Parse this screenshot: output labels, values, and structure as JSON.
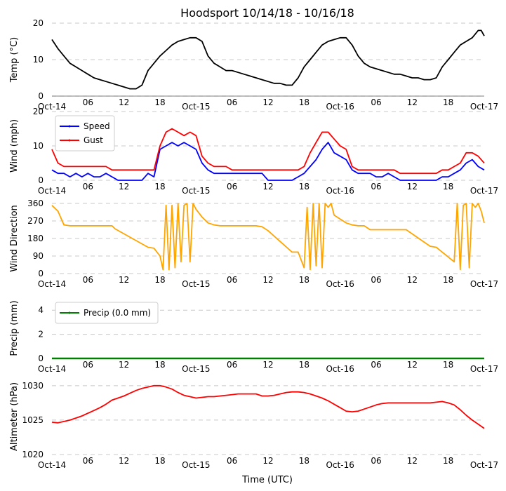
{
  "chart_data": {
    "title": "Hoodsport 10/14/18 - 10/16/18",
    "xlabel": "Time (UTC)",
    "x_range_hours": [
      0,
      72
    ],
    "x_ticks": [
      {
        "h": 0,
        "label": "Oct-14"
      },
      {
        "h": 6,
        "label": "06"
      },
      {
        "h": 12,
        "label": "12"
      },
      {
        "h": 18,
        "label": "18"
      },
      {
        "h": 24,
        "label": "Oct-15"
      },
      {
        "h": 30,
        "label": "06"
      },
      {
        "h": 36,
        "label": "12"
      },
      {
        "h": 42,
        "label": "18"
      },
      {
        "h": 48,
        "label": "Oct-16"
      },
      {
        "h": 54,
        "label": "06"
      },
      {
        "h": 60,
        "label": "12"
      },
      {
        "h": 66,
        "label": "18"
      },
      {
        "h": 72,
        "label": "Oct-17"
      }
    ],
    "panels": [
      {
        "id": "temp",
        "type": "line",
        "ylabel": "Temp (°C)",
        "ylim": [
          0,
          20
        ],
        "yticks": [
          0,
          10,
          20
        ],
        "grid": true,
        "legend": null,
        "series": [
          {
            "name": "Temp",
            "color": "#000000",
            "x": [
              0,
              1,
              2,
              3,
              4,
              5,
              6,
              7,
              8,
              9,
              10,
              11,
              12,
              13,
              14,
              15,
              16,
              17,
              18,
              19,
              20,
              21,
              22,
              23,
              24,
              25,
              26,
              27,
              28,
              29,
              30,
              31,
              32,
              33,
              34,
              35,
              36,
              37,
              38,
              39,
              40,
              41,
              42,
              43,
              44,
              45,
              46,
              47,
              48,
              49,
              50,
              51,
              52,
              53,
              54,
              55,
              56,
              57,
              58,
              59,
              60,
              61,
              62,
              63,
              64,
              65,
              66,
              67,
              68,
              69,
              70,
              71,
              71.5,
              72
            ],
            "y": [
              15.5,
              13,
              11,
              9,
              8,
              7,
              6,
              5,
              4.5,
              4,
              3.5,
              3,
              2.5,
              2,
              2,
              3,
              7,
              9,
              11,
              12.5,
              14,
              15,
              15.5,
              16,
              16,
              15,
              11,
              9,
              8,
              7,
              7,
              6.5,
              6,
              5.5,
              5,
              4.5,
              4,
              3.5,
              3.5,
              3,
              3,
              5,
              8,
              10,
              12,
              14,
              15,
              15.5,
              16,
              16,
              14,
              11,
              9,
              8,
              7.5,
              7,
              6.5,
              6,
              6,
              5.5,
              5,
              5,
              4.5,
              4.5,
              5,
              8,
              10,
              12,
              14,
              15,
              16,
              18,
              18,
              16.5
            ]
          }
        ]
      },
      {
        "id": "wind",
        "type": "line",
        "ylabel": "Wind (mph)",
        "ylim": [
          0,
          20
        ],
        "yticks": [
          0,
          10,
          20
        ],
        "grid": true,
        "legend": {
          "placement": "top-left",
          "entries": [
            "Speed",
            "Gust"
          ]
        },
        "series": [
          {
            "name": "Speed",
            "color": "#0000ff",
            "x": [
              0,
              1,
              2,
              3,
              4,
              5,
              6,
              7,
              8,
              9,
              10,
              11,
              12,
              13,
              14,
              15,
              16,
              17,
              18,
              19,
              20,
              21,
              22,
              23,
              24,
              25,
              26,
              27,
              28,
              29,
              30,
              31,
              32,
              33,
              34,
              35,
              36,
              37,
              38,
              39,
              40,
              41,
              42,
              43,
              44,
              45,
              46,
              47,
              48,
              49,
              50,
              51,
              52,
              53,
              54,
              55,
              56,
              57,
              58,
              59,
              60,
              61,
              62,
              63,
              64,
              65,
              66,
              67,
              68,
              69,
              70,
              71,
              72
            ],
            "y": [
              3,
              2,
              2,
              1,
              2,
              1,
              2,
              1,
              1,
              2,
              1,
              0,
              0,
              0,
              0,
              0,
              2,
              1,
              9,
              10,
              11,
              10,
              11,
              10,
              9,
              5,
              3,
              2,
              2,
              2,
              2,
              2,
              2,
              2,
              2,
              2,
              0,
              0,
              0,
              0,
              0,
              1,
              2,
              4,
              6,
              9,
              11,
              8,
              7,
              6,
              3,
              2,
              2,
              2,
              1,
              1,
              2,
              1,
              0,
              0,
              0,
              0,
              0,
              0,
              0,
              1,
              1,
              2,
              3,
              5,
              6,
              4,
              3
            ]
          },
          {
            "name": "Gust",
            "color": "#ff0000",
            "x": [
              0,
              1,
              2,
              3,
              4,
              5,
              6,
              7,
              8,
              9,
              10,
              11,
              12,
              13,
              14,
              15,
              16,
              17,
              18,
              19,
              20,
              21,
              22,
              23,
              24,
              25,
              26,
              27,
              28,
              29,
              30,
              31,
              32,
              33,
              34,
              35,
              36,
              37,
              38,
              39,
              40,
              41,
              42,
              43,
              44,
              45,
              46,
              47,
              48,
              49,
              50,
              51,
              52,
              53,
              54,
              55,
              56,
              57,
              58,
              59,
              60,
              61,
              62,
              63,
              64,
              65,
              66,
              67,
              68,
              69,
              70,
              71,
              72
            ],
            "y": [
              9,
              5,
              4,
              4,
              4,
              4,
              4,
              4,
              4,
              4,
              3,
              3,
              3,
              3,
              3,
              3,
              3,
              3,
              10,
              14,
              15,
              14,
              13,
              14,
              13,
              7,
              5,
              4,
              4,
              4,
              3,
              3,
              3,
              3,
              3,
              3,
              3,
              3,
              3,
              3,
              3,
              3,
              4,
              8,
              11,
              14,
              14,
              12,
              10,
              9,
              4,
              3,
              3,
              3,
              3,
              3,
              3,
              3,
              2,
              2,
              2,
              2,
              2,
              2,
              2,
              3,
              3,
              4,
              5,
              8,
              8,
              7,
              5
            ]
          }
        ]
      },
      {
        "id": "dir",
        "type": "line",
        "ylabel": "Wind Direction",
        "ylim": [
          0,
          360
        ],
        "yticks": [
          0,
          90,
          180,
          270,
          360
        ],
        "grid": true,
        "legend": null,
        "series": [
          {
            "name": "Direction",
            "color": "#ffa500",
            "x": [
              0,
              1,
              2,
              3,
              4,
              5,
              6,
              7,
              8,
              9,
              10,
              10.5,
              16,
              17,
              18,
              18.5,
              19,
              19.5,
              20,
              20.5,
              21,
              21.5,
              22,
              22.5,
              23,
              23.5,
              24,
              25,
              26,
              27,
              28,
              29,
              30,
              31,
              32,
              33,
              34,
              35,
              36,
              40,
              41,
              42,
              42.5,
              43,
              43.5,
              44,
              44.5,
              45,
              45.5,
              46,
              46.5,
              47,
              48,
              49,
              50,
              51,
              52,
              53,
              54,
              55,
              56,
              57,
              58,
              59,
              63,
              64,
              65,
              67,
              67.5,
              68,
              68.5,
              69,
              69.5,
              70,
              70.5,
              71,
              71.5,
              72
            ],
            "y": [
              350,
              320,
              250,
              245,
              245,
              245,
              245,
              245,
              245,
              245,
              245,
              230,
              135,
              130,
              90,
              20,
              350,
              20,
              350,
              30,
              360,
              60,
              350,
              360,
              60,
              360,
              330,
              290,
              260,
              250,
              245,
              245,
              245,
              245,
              245,
              245,
              245,
              240,
              220,
              110,
              110,
              30,
              340,
              20,
              360,
              40,
              360,
              30,
              360,
              340,
              360,
              300,
              280,
              260,
              250,
              245,
              245,
              225,
              225,
              225,
              225,
              225,
              225,
              225,
              140,
              135,
              110,
              60,
              360,
              20,
              350,
              360,
              30,
              360,
              340,
              360,
              320,
              260
            ]
          }
        ]
      },
      {
        "id": "precip",
        "type": "line",
        "ylabel": "Precip (mm)",
        "ylim": [
          0,
          5
        ],
        "yticks": [
          0,
          2,
          4
        ],
        "grid": true,
        "legend": {
          "placement": "top-left",
          "entries": [
            "Precip (0.0 mm)"
          ]
        },
        "series": [
          {
            "name": "Precip (0.0 mm)",
            "color": "#008000",
            "x": [
              0,
              72
            ],
            "y": [
              0,
              0
            ]
          }
        ]
      },
      {
        "id": "alt",
        "type": "line",
        "ylabel": "Altimeter (hPa)",
        "ylim": [
          1020,
          1031
        ],
        "yticks": [
          1020,
          1025,
          1030
        ],
        "grid": true,
        "legend": null,
        "series": [
          {
            "name": "Altimeter",
            "color": "#ff0000",
            "x": [
              0,
              1,
              2,
              3,
              4,
              5,
              6,
              7,
              8,
              9,
              10,
              11,
              12,
              13,
              14,
              15,
              16,
              17,
              18,
              19,
              20,
              21,
              22,
              23,
              24,
              25,
              26,
              27,
              28,
              29,
              30,
              31,
              32,
              33,
              34,
              35,
              36,
              37,
              38,
              39,
              40,
              41,
              42,
              43,
              44,
              45,
              46,
              47,
              48,
              49,
              50,
              51,
              52,
              53,
              54,
              55,
              56,
              57,
              58,
              59,
              60,
              61,
              62,
              63,
              64,
              65,
              66,
              67,
              68,
              69,
              70,
              71,
              72
            ],
            "y": [
              1024.7,
              1024.6,
              1024.8,
              1025,
              1025.3,
              1025.6,
              1026,
              1026.4,
              1026.8,
              1027.3,
              1027.9,
              1028.2,
              1028.5,
              1028.9,
              1029.3,
              1029.6,
              1029.8,
              1030,
              1030,
              1029.8,
              1029.5,
              1029,
              1028.6,
              1028.4,
              1028.2,
              1028.3,
              1028.4,
              1028.4,
              1028.5,
              1028.6,
              1028.7,
              1028.8,
              1028.8,
              1028.8,
              1028.8,
              1028.5,
              1028.5,
              1028.6,
              1028.8,
              1029,
              1029.1,
              1029.1,
              1029,
              1028.8,
              1028.5,
              1028.2,
              1027.8,
              1027.3,
              1026.8,
              1026.3,
              1026.2,
              1026.3,
              1026.6,
              1026.9,
              1027.2,
              1027.4,
              1027.5,
              1027.5,
              1027.5,
              1027.5,
              1027.5,
              1027.5,
              1027.5,
              1027.5,
              1027.6,
              1027.7,
              1027.5,
              1027.2,
              1026.5,
              1025.7,
              1025,
              1024.4,
              1023.8
            ]
          }
        ]
      }
    ]
  }
}
